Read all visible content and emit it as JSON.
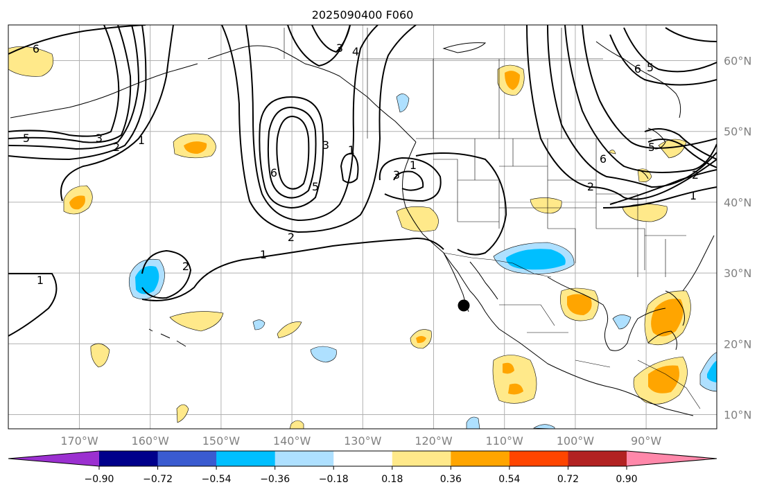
{
  "title": "2025090400 F060",
  "lon_labels": [
    "170°W",
    "160°W",
    "150°W",
    "140°W",
    "130°W",
    "120°W",
    "110°W",
    "100°W",
    "90°W"
  ],
  "lat_labels": [
    "60°N",
    "50°N",
    "40°N",
    "30°N",
    "20°N",
    "10°N"
  ],
  "colorbar": {
    "colors": [
      "#9b30d0",
      "#00008b",
      "#3a5bd0",
      "#00bfff",
      "#aee0ff",
      "#ffffff",
      "#ffe98a",
      "#ffa500",
      "#ff4500",
      "#b22222",
      "#ff88aa"
    ],
    "tick_labels": [
      "−0.90",
      "−0.72",
      "−0.54",
      "−0.36",
      "−0.18",
      "0.18",
      "0.36",
      "0.54",
      "0.72",
      "0.90"
    ]
  },
  "contour_labels": [
    "6",
    "5",
    "3",
    "2",
    "1",
    "3",
    "4",
    "5",
    "6",
    "3",
    "1",
    "2",
    "3",
    "1",
    "1",
    "2",
    "1",
    "2",
    "6",
    "5",
    "6",
    "5",
    "2",
    "1"
  ],
  "colors": {
    "grid": "#b0b0b0",
    "axis_text": "#808080",
    "marker": "#000000"
  }
}
